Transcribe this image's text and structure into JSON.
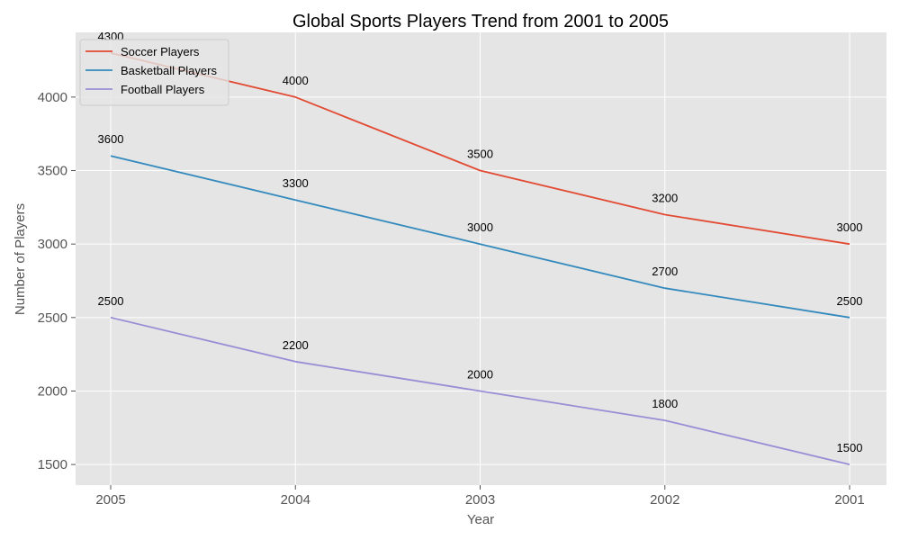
{
  "chart_data": {
    "type": "line",
    "title": "Global Sports Players Trend from 2001 to 2005",
    "xlabel": "Year",
    "ylabel": "Number of Players",
    "categories": [
      "2005",
      "2004",
      "2003",
      "2002",
      "2001"
    ],
    "series": [
      {
        "name": "Soccer Players",
        "values": [
          4300,
          4000,
          3500,
          3200,
          3000
        ],
        "color": "#E24A33"
      },
      {
        "name": "Basketball Players",
        "values": [
          3600,
          3300,
          3000,
          2700,
          2500
        ],
        "color": "#348ABD"
      },
      {
        "name": "Football Players",
        "values": [
          2500,
          2200,
          2000,
          1800,
          1500
        ],
        "color": "#988ED5"
      }
    ],
    "ylim": [
      1360,
      4440
    ],
    "yticks": [
      1500,
      2000,
      2500,
      3000,
      3500,
      4000
    ],
    "grid": true,
    "legend": "upper-left",
    "background": "#E5E5E5",
    "grid_color": "#FFFFFF"
  }
}
